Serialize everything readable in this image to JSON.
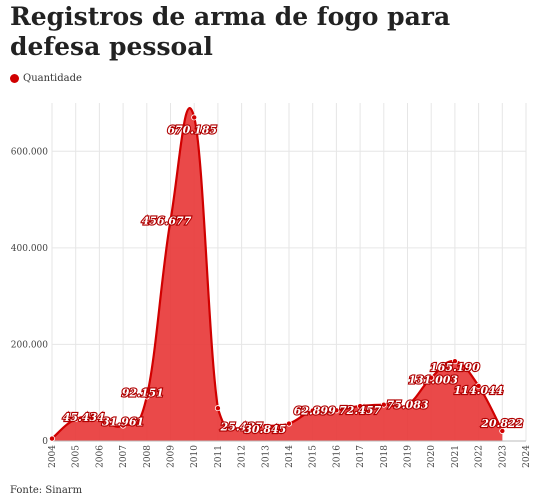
{
  "header": {
    "title": "Registros de arma de fogo para defesa pessoal"
  },
  "legend": {
    "label": "Quantidade",
    "color": "#d00000"
  },
  "footer": {
    "source": "Fonte: Sinarm"
  },
  "chart_data": {
    "type": "area",
    "title": "Registros de arma de fogo para defesa pessoal",
    "xlabel": "",
    "ylabel": "",
    "x_ticks": [
      "2004",
      "2005",
      "2006",
      "2007",
      "2008",
      "2009",
      "2010",
      "2011",
      "2012",
      "2013",
      "2014",
      "2015",
      "2016",
      "2017",
      "2018",
      "2019",
      "2020",
      "2021",
      "2022",
      "2023",
      "2024"
    ],
    "y_ticks": [
      0,
      200000,
      400000,
      600000
    ],
    "y_tick_labels": [
      "0",
      "200.000",
      "400.000",
      "600.000"
    ],
    "ylim": [
      0,
      700000
    ],
    "xlim": [
      2004,
      2024
    ],
    "grid": true,
    "legend_position": "top-left",
    "color": "#d00000",
    "fill_color": "#e83a3a",
    "series": [
      {
        "name": "Quantidade",
        "x": [
          2004,
          2005,
          2006,
          2007,
          2008,
          2009,
          2010,
          2011,
          2012,
          2013,
          2014,
          2015,
          2016,
          2017,
          2018,
          2019,
          2020,
          2021,
          2022,
          2023
        ],
        "values": [
          5000,
          45434,
          45500,
          31961,
          92151,
          456677,
          670185,
          68000,
          25437,
          30845,
          36000,
          62899,
          63500,
          72457,
          75200,
          75083,
          131003,
          165190,
          114044,
          20822
        ],
        "labels": [
          "",
          "45.434",
          "",
          "31.961",
          "92.151",
          "456.677",
          "670.185",
          "",
          "25.437",
          "30.845",
          "",
          "62.899",
          "",
          "72.457",
          "",
          "75.083",
          "131.003",
          "165.190",
          "114.044",
          "20.822"
        ]
      }
    ]
  }
}
